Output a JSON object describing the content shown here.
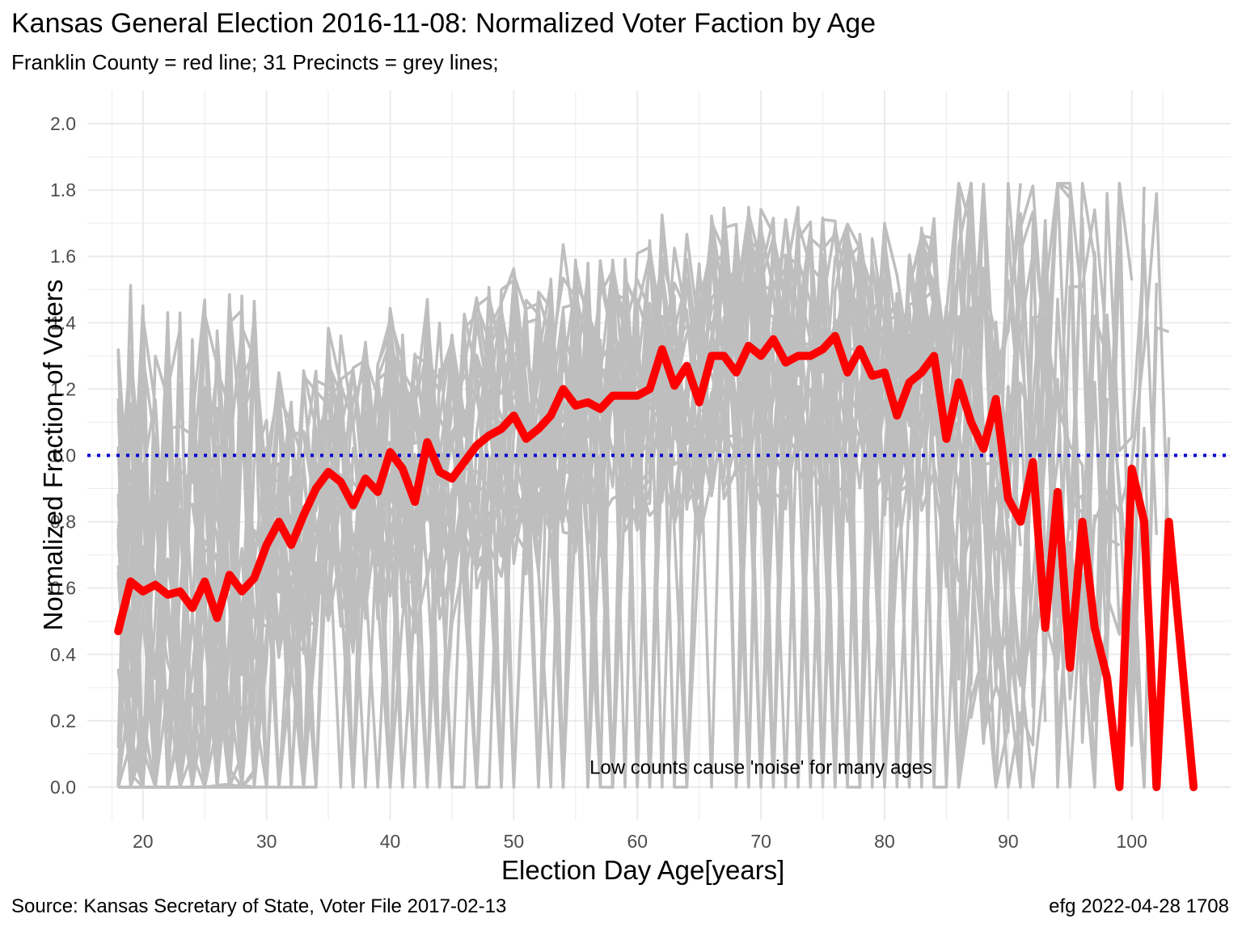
{
  "chart_data": {
    "type": "line",
    "title": "Kansas General Election 2016-11-08:  Normalized Voter Faction by Age",
    "subtitle": "Franklin County = red line; 31 Precincts = grey lines;",
    "xlabel": "Election Day Age[years]",
    "ylabel": "Normalized Fraction of Voters",
    "caption_left": "Source:  Kansas Secretary of State, Voter File  2017-02-13",
    "caption_right": "efg 2022-04-28 1708",
    "annotation": {
      "text": "Low counts cause 'noise' for many ages",
      "x": 70,
      "y": 0.06
    },
    "xlim": [
      15.5,
      108
    ],
    "ylim": [
      -0.1,
      2.1
    ],
    "x_ticks": [
      20,
      30,
      40,
      50,
      60,
      70,
      80,
      90,
      100
    ],
    "x_tick_labels": [
      "20",
      "30",
      "40",
      "50",
      "60",
      "70",
      "80",
      "90",
      "100"
    ],
    "y_ticks": [
      0,
      0.2,
      0.4,
      0.6,
      0.8,
      1.0,
      1.2,
      1.4,
      1.6,
      1.8,
      2.0
    ],
    "y_tick_labels": [
      "0.0",
      "0.2",
      "0.4",
      "0.6",
      "0.8",
      "1.0",
      "1.2",
      "1.4",
      "1.6",
      "1.8",
      "2.0"
    ],
    "grid": true,
    "reference_line": {
      "y": 1.0,
      "style": "dotted",
      "color": "#0000cc"
    },
    "colors": {
      "county": "#ff0000",
      "precincts": "#bebebe",
      "grid": "#ebebeb",
      "reference": "#0000cc"
    },
    "precinct_count": 31,
    "county_series": {
      "x": [
        18,
        19,
        20,
        21,
        22,
        23,
        24,
        25,
        26,
        27,
        28,
        29,
        30,
        31,
        32,
        33,
        34,
        35,
        36,
        37,
        38,
        39,
        40,
        41,
        42,
        43,
        44,
        45,
        46,
        47,
        48,
        49,
        50,
        51,
        52,
        53,
        54,
        55,
        56,
        57,
        58,
        59,
        60,
        61,
        62,
        63,
        64,
        65,
        66,
        67,
        68,
        69,
        70,
        71,
        72,
        73,
        74,
        75,
        76,
        77,
        78,
        79,
        80,
        81,
        82,
        83,
        84,
        85,
        86,
        87,
        88,
        89,
        90,
        91,
        92,
        93,
        94,
        95,
        96,
        97,
        98,
        99,
        100,
        101,
        102,
        103,
        104,
        105
      ],
      "y": [
        0.47,
        0.62,
        0.59,
        0.61,
        0.58,
        0.59,
        0.54,
        0.62,
        0.51,
        0.64,
        0.59,
        0.63,
        0.73,
        0.8,
        0.73,
        0.82,
        0.9,
        0.95,
        0.92,
        0.85,
        0.93,
        0.89,
        1.01,
        0.96,
        0.86,
        1.04,
        0.95,
        0.93,
        0.98,
        1.03,
        1.06,
        1.08,
        1.12,
        1.05,
        1.08,
        1.12,
        1.2,
        1.15,
        1.16,
        1.14,
        1.18,
        1.18,
        1.18,
        1.2,
        1.32,
        1.21,
        1.27,
        1.16,
        1.3,
        1.3,
        1.25,
        1.33,
        1.3,
        1.35,
        1.28,
        1.3,
        1.3,
        1.32,
        1.36,
        1.25,
        1.32,
        1.24,
        1.25,
        1.12,
        1.22,
        1.25,
        1.3,
        1.05,
        1.22,
        1.1,
        1.02,
        1.17,
        0.87,
        0.8,
        0.98,
        0.48,
        0.89,
        0.36,
        0.8,
        0.48,
        0.33,
        0.0,
        0.96,
        0.8,
        0.0,
        0.8,
        0.4,
        0.0
      ]
    }
  }
}
